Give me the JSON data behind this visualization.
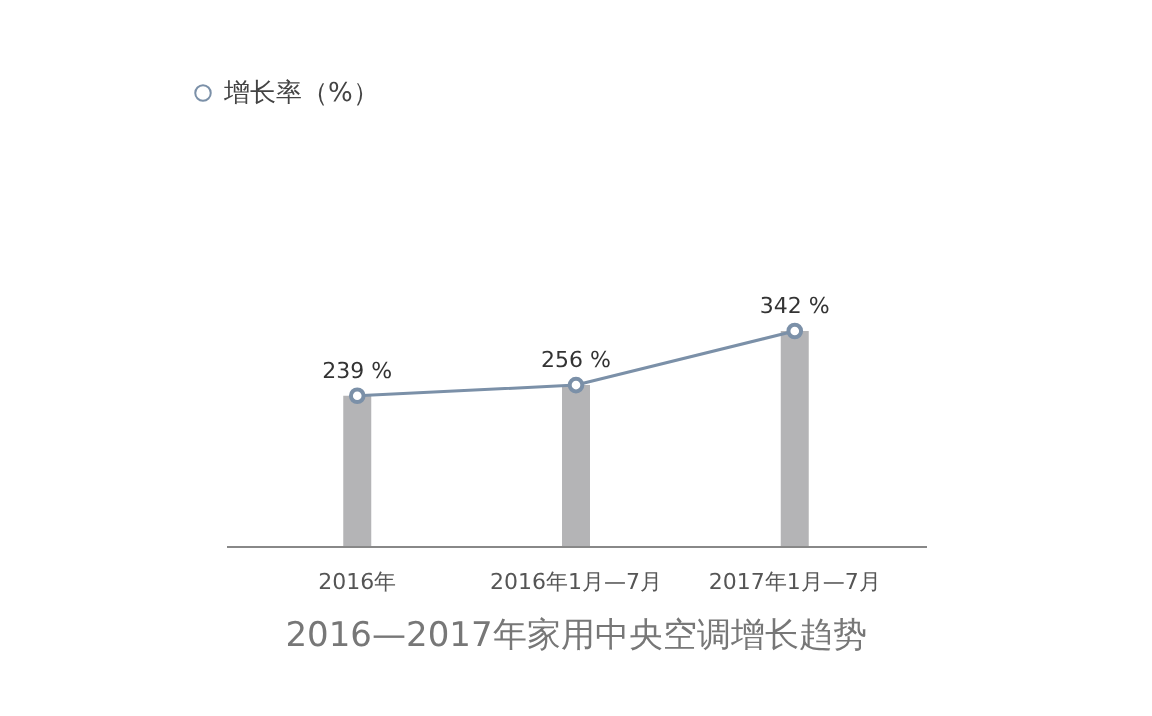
{
  "chart_data": {
    "type": "line",
    "title": "2016—2017年家用中央空调增长趋势",
    "categories": [
      "2016年",
      "2016年1月—7月",
      "2017年1月—7月"
    ],
    "legend": "top left",
    "series": [
      {
        "type": "bar",
        "color": "#b4b4b6",
        "values": [
          239,
          256,
          342
        ]
      },
      {
        "name": "增长率（%）",
        "color": "#7b90a8",
        "marker": "circle",
        "values": [
          239,
          256,
          342
        ],
        "value_labels": [
          "239 %",
          "256 %",
          "342 %"
        ]
      }
    ]
  }
}
